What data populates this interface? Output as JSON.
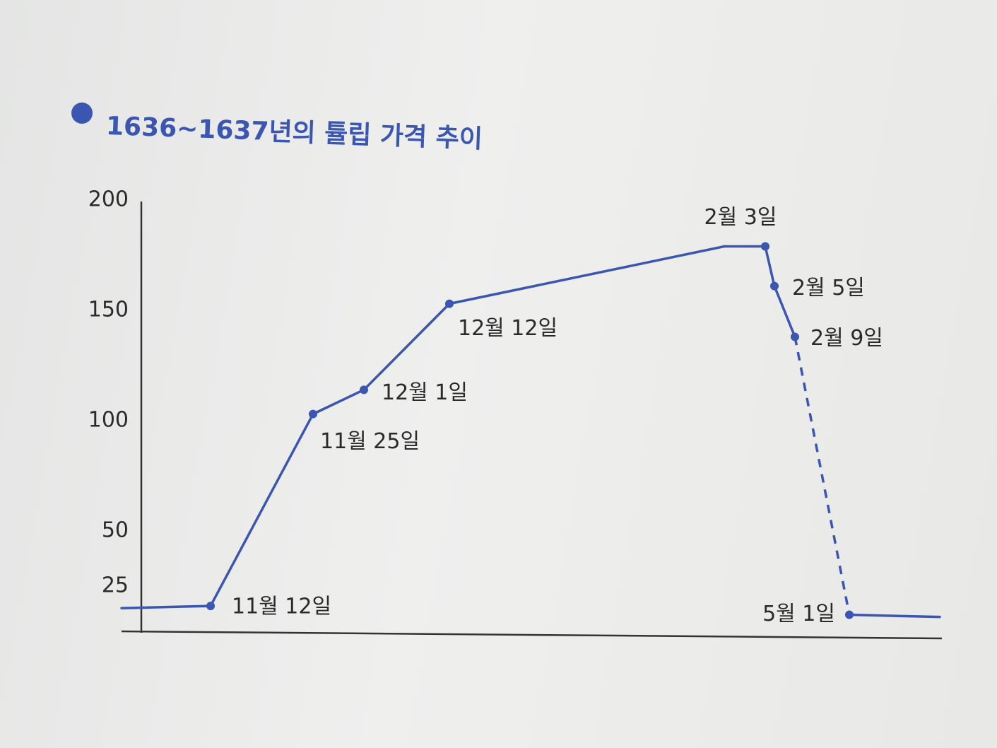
{
  "chart_data": {
    "type": "line",
    "title": "1636~1637년의 튤립 가격 추이",
    "categories": [
      null,
      "11월 12일",
      "11월 25일",
      "12월 1일",
      "12월 12일",
      null,
      "2월 3일",
      "2월 5일",
      "2월 9일",
      "5월 1일",
      null
    ],
    "values": [
      15,
      16,
      103,
      114,
      153,
      179,
      179,
      161,
      138,
      12,
      11
    ],
    "line_styles": [
      "solid",
      "solid",
      "solid",
      "solid",
      "solid",
      "solid",
      "solid",
      "solid",
      "dashed",
      "solid"
    ],
    "color": "#3a56b0",
    "ylim": [
      0,
      200
    ],
    "yticks": [
      25,
      50,
      100,
      150,
      200
    ],
    "grid": false
  }
}
